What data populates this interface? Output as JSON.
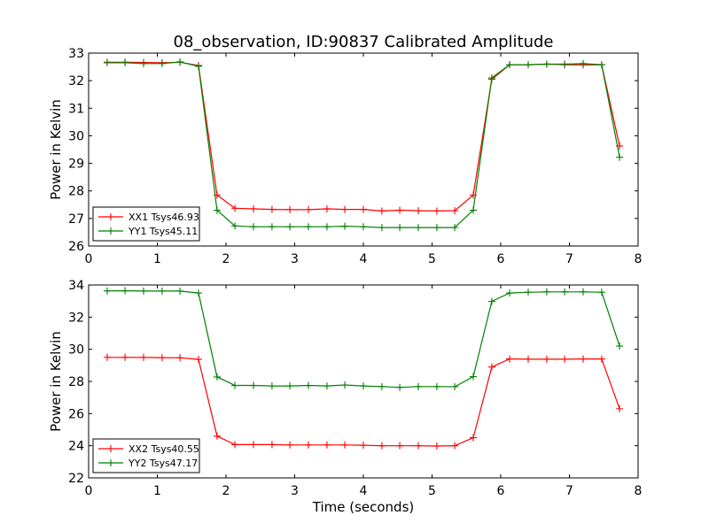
{
  "chart_data": [
    {
      "type": "line",
      "title": "08_observation, ID:90837 Calibrated Amplitude",
      "xlabel": "",
      "ylabel": "Power in Kelvin",
      "xlim": [
        0,
        8
      ],
      "ylim": [
        26,
        33
      ],
      "xticks": [
        "0",
        "1",
        "2",
        "3",
        "4",
        "5",
        "6",
        "7",
        "8"
      ],
      "yticks": [
        "26",
        "27",
        "28",
        "29",
        "30",
        "31",
        "32",
        "33"
      ],
      "legend": "lower-left",
      "grid": false,
      "x": [
        0.27,
        0.53,
        0.8,
        1.07,
        1.33,
        1.6,
        1.87,
        2.13,
        2.4,
        2.67,
        2.93,
        3.2,
        3.47,
        3.73,
        4.0,
        4.27,
        4.53,
        4.8,
        5.07,
        5.33,
        5.6,
        5.87,
        6.13,
        6.4,
        6.67,
        6.93,
        7.2,
        7.47,
        7.73
      ],
      "series": [
        {
          "name": "XX1 Tsys46.93",
          "color": "#ff0000",
          "values": [
            32.67,
            32.67,
            32.66,
            32.65,
            32.67,
            32.55,
            27.85,
            27.37,
            27.35,
            27.33,
            27.32,
            27.32,
            27.35,
            27.33,
            27.33,
            27.27,
            27.3,
            27.28,
            27.27,
            27.28,
            27.85,
            32.05,
            32.58,
            32.58,
            32.6,
            32.58,
            32.57,
            32.58,
            29.63
          ]
        },
        {
          "name": "YY1 Tsys45.11",
          "color": "#008000",
          "values": [
            32.65,
            32.65,
            32.62,
            32.62,
            32.68,
            32.52,
            27.3,
            26.73,
            26.7,
            26.7,
            26.7,
            26.7,
            26.7,
            26.72,
            26.7,
            26.67,
            26.67,
            26.67,
            26.67,
            26.67,
            27.3,
            32.1,
            32.58,
            32.58,
            32.6,
            32.6,
            32.62,
            32.58,
            29.22
          ]
        }
      ]
    },
    {
      "type": "line",
      "title": "",
      "xlabel": "Time (seconds)",
      "ylabel": "Power in Kelvin",
      "xlim": [
        0,
        8
      ],
      "ylim": [
        22,
        34
      ],
      "xticks": [
        "0",
        "1",
        "2",
        "3",
        "4",
        "5",
        "6",
        "7",
        "8"
      ],
      "yticks": [
        "22",
        "24",
        "26",
        "28",
        "30",
        "32",
        "34"
      ],
      "legend": "lower-left",
      "grid": false,
      "x": [
        0.27,
        0.53,
        0.8,
        1.07,
        1.33,
        1.6,
        1.87,
        2.13,
        2.4,
        2.67,
        2.93,
        3.2,
        3.47,
        3.73,
        4.0,
        4.27,
        4.53,
        4.8,
        5.07,
        5.33,
        5.6,
        5.87,
        6.13,
        6.4,
        6.67,
        6.93,
        7.2,
        7.47,
        7.73
      ],
      "series": [
        {
          "name": "XX2 Tsys40.55",
          "color": "#ff0000",
          "values": [
            29.5,
            29.5,
            29.49,
            29.48,
            29.47,
            29.37,
            24.6,
            24.07,
            24.07,
            24.07,
            24.05,
            24.05,
            24.05,
            24.05,
            24.03,
            24.0,
            24.0,
            24.0,
            23.98,
            24.0,
            24.5,
            28.9,
            29.4,
            29.38,
            29.38,
            29.38,
            29.4,
            29.4,
            26.3
          ]
        },
        {
          "name": "YY2 Tsys47.17",
          "color": "#008000",
          "values": [
            33.63,
            33.64,
            33.62,
            33.62,
            33.62,
            33.5,
            28.28,
            27.75,
            27.75,
            27.72,
            27.72,
            27.75,
            27.72,
            27.78,
            27.72,
            27.68,
            27.63,
            27.68,
            27.68,
            27.67,
            28.3,
            32.98,
            33.5,
            33.55,
            33.57,
            33.57,
            33.57,
            33.55,
            30.2
          ]
        }
      ]
    }
  ]
}
